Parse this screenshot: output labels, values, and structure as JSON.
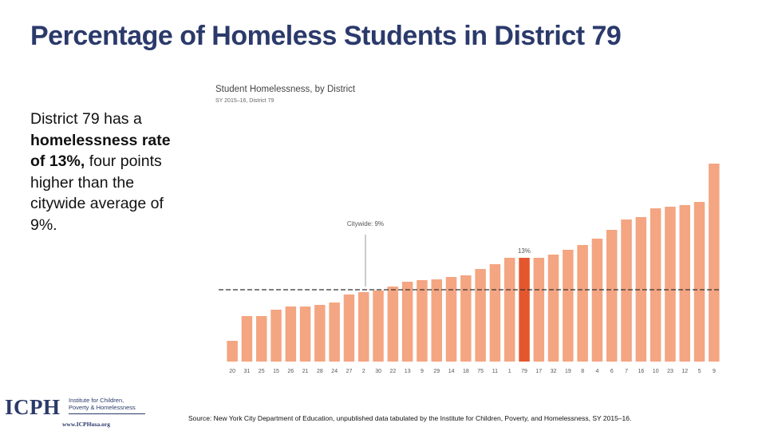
{
  "slide": {
    "title": "Percentage of Homeless Students in District 79",
    "body_prefix": "District 79 has a ",
    "body_bold": "homelessness rate of 13%,",
    "body_suffix": " four points higher than the citywide average of 9%.",
    "source": "Source: New York City Department of Education, unpublished data tabulated by the Institute for Children, Poverty, and Homelessness, SY 2015–16."
  },
  "logo": {
    "main": "ICPH",
    "sub_line1": "Institute for Children,",
    "sub_line2": "Poverty & Homelessness",
    "url": "www.ICPHusa.org"
  },
  "colors": {
    "title": "#2b3a6b",
    "bar": "#f4a582",
    "highlight": "#e4572e",
    "average_line": "#333333"
  },
  "chart_data": {
    "type": "bar",
    "title": "Student Homelessness, by District",
    "subtitle": "SY 2015–16, District 79",
    "categories": [
      "20",
      "31",
      "25",
      "15",
      "26",
      "21",
      "28",
      "24",
      "27",
      "2",
      "30",
      "22",
      "13",
      "9",
      "29",
      "14",
      "18",
      "75",
      "11",
      "1",
      "79",
      "17",
      "32",
      "19",
      "8",
      "4",
      "6",
      "7",
      "16",
      "10",
      "23",
      "12",
      "5",
      "9"
    ],
    "values": [
      2.6,
      5.7,
      5.7,
      6.5,
      6.9,
      6.9,
      7.1,
      7.4,
      8.4,
      8.7,
      8.9,
      9.4,
      10.0,
      10.2,
      10.3,
      10.6,
      10.8,
      11.6,
      12.2,
      13.0,
      13.0,
      13.0,
      13.4,
      14.0,
      14.6,
      15.4,
      16.5,
      17.8,
      18.1,
      19.2,
      19.4,
      19.6,
      20.0,
      24.8
    ],
    "highlight_category_index": 20,
    "highlight_label": "13%",
    "average": 9,
    "average_label": "Citywide: 9%",
    "ylim": [
      0,
      30
    ],
    "grid": false
  }
}
